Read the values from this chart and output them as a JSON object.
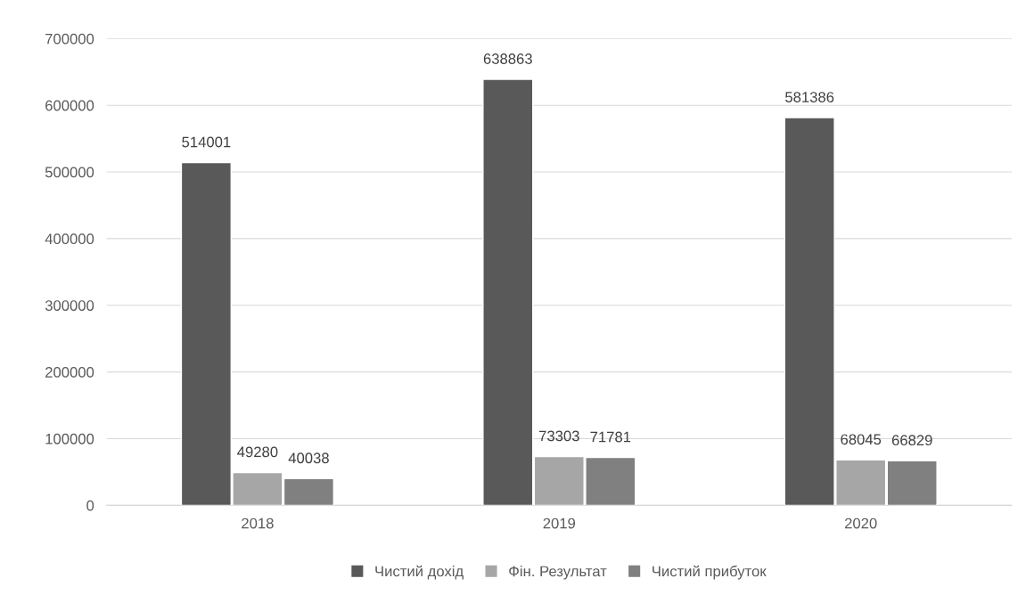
{
  "chart_data": {
    "type": "bar",
    "categories": [
      "2018",
      "2019",
      "2020"
    ],
    "series": [
      {
        "name": "Чистий дохід",
        "color": "#595959",
        "values": [
          514001,
          638863,
          581386
        ]
      },
      {
        "name": "Фін. Результат",
        "color": "#a6a6a6",
        "values": [
          49280,
          73303,
          68045
        ]
      },
      {
        "name": "Чистий прибуток",
        "color": "#808080",
        "values": [
          40038,
          71781,
          66829
        ]
      }
    ],
    "ylim": [
      0,
      700000
    ],
    "yticks": [
      0,
      100000,
      200000,
      300000,
      400000,
      500000,
      600000,
      700000
    ],
    "grid": "y",
    "legend": "bottom",
    "data_labels": true
  }
}
